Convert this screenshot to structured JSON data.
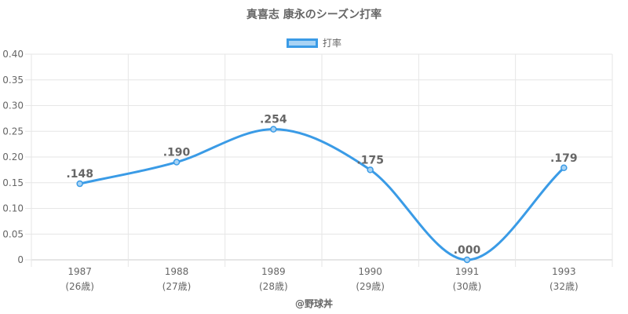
{
  "chart_data": {
    "type": "line",
    "title": "真喜志 康永のシーズン打率",
    "categories": [
      "1987",
      "1988",
      "1989",
      "1990",
      "1991",
      "1993"
    ],
    "category_sublabels": [
      "(26歳)",
      "(27歳)",
      "(28歳)",
      "(29歳)",
      "(30歳)",
      "(32歳)"
    ],
    "series": [
      {
        "name": "打率",
        "values": [
          0.148,
          0.19,
          0.254,
          0.175,
          0.0,
          0.179
        ],
        "data_labels": [
          ".148",
          ".190",
          ".254",
          ".175",
          ".000",
          ".179"
        ],
        "color": "#3a9be6"
      }
    ],
    "ylim": [
      0,
      0.4
    ],
    "y_ticks": [
      0,
      0.05,
      0.1,
      0.15,
      0.2,
      0.25,
      0.3,
      0.35,
      0.4
    ],
    "y_tick_labels": [
      "0",
      "0.05",
      "0.10",
      "0.15",
      "0.20",
      "0.25",
      "0.30",
      "0.35",
      "0.40"
    ],
    "grid": true,
    "legend_position": "top-center"
  },
  "legend": {
    "label": "打率",
    "fill_color": "#a9d3f4",
    "border_color": "#3a9be6"
  },
  "credit": "@野球丼"
}
